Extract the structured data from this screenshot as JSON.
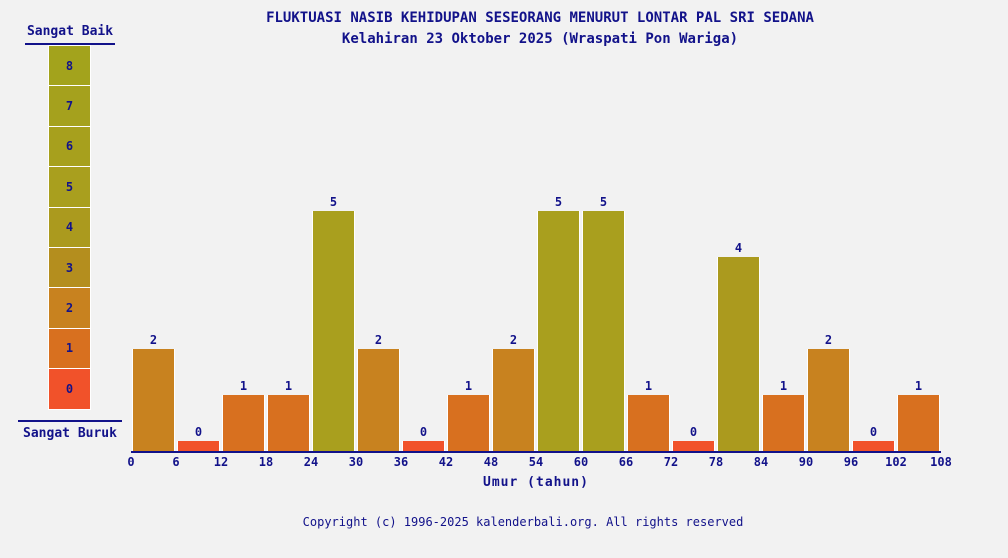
{
  "page": {
    "background": "#f2f2f2",
    "text_color": "#12128a"
  },
  "chart_data": {
    "type": "bar",
    "title": "FLUKTUASI NASIB KEHIDUPAN SESEORANG MENURUT LONTAR PAL SRI SEDANA",
    "subtitle": "Kelahiran 23 Oktober 2025 (Wraspati Pon Wariga)",
    "xlabel": "Umur (tahun)",
    "categories": [
      "0-6",
      "6-12",
      "12-18",
      "18-24",
      "24-30",
      "30-36",
      "36-42",
      "42-48",
      "48-54",
      "54-60",
      "60-66",
      "66-72",
      "72-78",
      "78-84",
      "84-90",
      "90-96",
      "96-102",
      "102-108"
    ],
    "values": [
      2,
      0,
      1,
      1,
      5,
      2,
      0,
      1,
      2,
      5,
      5,
      1,
      0,
      4,
      1,
      2,
      0,
      1
    ],
    "x_ticks": [
      0,
      6,
      12,
      18,
      24,
      30,
      36,
      42,
      48,
      54,
      60,
      66,
      72,
      78,
      84,
      90,
      96,
      102,
      108
    ],
    "bin_size_years": 6,
    "ylim": [
      0,
      8
    ],
    "grid": false,
    "colors_by_value": {
      "0": "#f1522a",
      "1": "#d8701f",
      "2": "#c8821f",
      "3": "#b48e1e",
      "4": "#ab9a1e",
      "5": "#a99f1e",
      "6": "#a7a01d",
      "7": "#a5a11d",
      "8": "#a3a31c"
    },
    "legend": {
      "position": "top-left",
      "top_label": "Sangat Baik",
      "bottom_label": "Sangat Buruk",
      "scale_values": [
        8,
        7,
        6,
        5,
        4,
        3,
        2,
        1,
        0
      ]
    }
  },
  "footer": {
    "copyright": "Copyright (c) 1996-2025 kalenderbali.org. All rights reserved"
  }
}
